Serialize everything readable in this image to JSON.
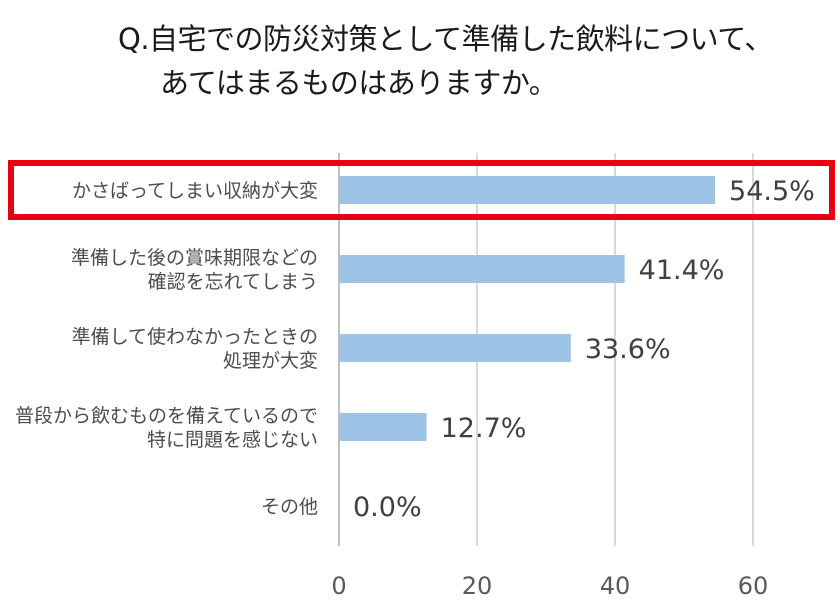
{
  "title": {
    "line1": "Q.自宅での防災対策として準備した飲料について、",
    "line2": "あてはまるものはありますか。"
  },
  "chart_data": {
    "type": "bar",
    "orientation": "horizontal",
    "categories": [
      [
        "かさばってしまい収納が大変"
      ],
      [
        "準備した後の賞味期限などの",
        "確認を忘れてしまう"
      ],
      [
        "準備して使わなかったときの",
        "処理が大変"
      ],
      [
        "普段から飲むものを備えているので",
        "特に問題を感じない"
      ],
      [
        "その他"
      ]
    ],
    "values": [
      54.5,
      41.4,
      33.6,
      12.7,
      0.0
    ],
    "value_labels": [
      "54.5%",
      "41.4%",
      "33.6%",
      "12.7%",
      "0.0%"
    ],
    "xlim": [
      0,
      70
    ],
    "xticks": [
      "0",
      "20",
      "40",
      "60"
    ],
    "grid": true,
    "bar_color": "#9dc3e6",
    "highlight_index": 0,
    "highlight_color": "#e60012"
  }
}
